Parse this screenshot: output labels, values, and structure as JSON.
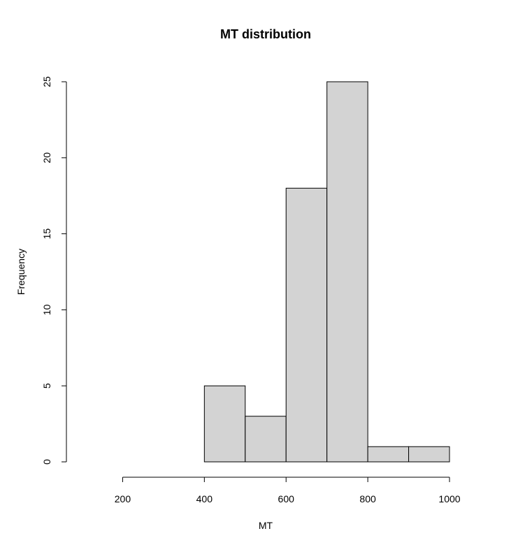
{
  "chart_data": {
    "type": "bar",
    "title": "MT distribution",
    "xlabel": "MT",
    "ylabel": "Frequency",
    "bins": [
      {
        "start": 100,
        "end": 200,
        "count": 0
      },
      {
        "start": 200,
        "end": 300,
        "count": 0
      },
      {
        "start": 300,
        "end": 400,
        "count": 0
      },
      {
        "start": 400,
        "end": 500,
        "count": 5
      },
      {
        "start": 500,
        "end": 600,
        "count": 3
      },
      {
        "start": 600,
        "end": 700,
        "count": 18
      },
      {
        "start": 700,
        "end": 800,
        "count": 25
      },
      {
        "start": 800,
        "end": 900,
        "count": 1
      },
      {
        "start": 900,
        "end": 1000,
        "count": 1
      }
    ],
    "xlim": [
      100,
      1000
    ],
    "ylim": [
      0,
      25
    ],
    "x_ticks": [
      200,
      400,
      600,
      800,
      1000
    ],
    "y_ticks": [
      0,
      5,
      10,
      15,
      20,
      25
    ],
    "grid": false,
    "bar_color": "#d3d3d3",
    "edge_color": "#000000"
  }
}
